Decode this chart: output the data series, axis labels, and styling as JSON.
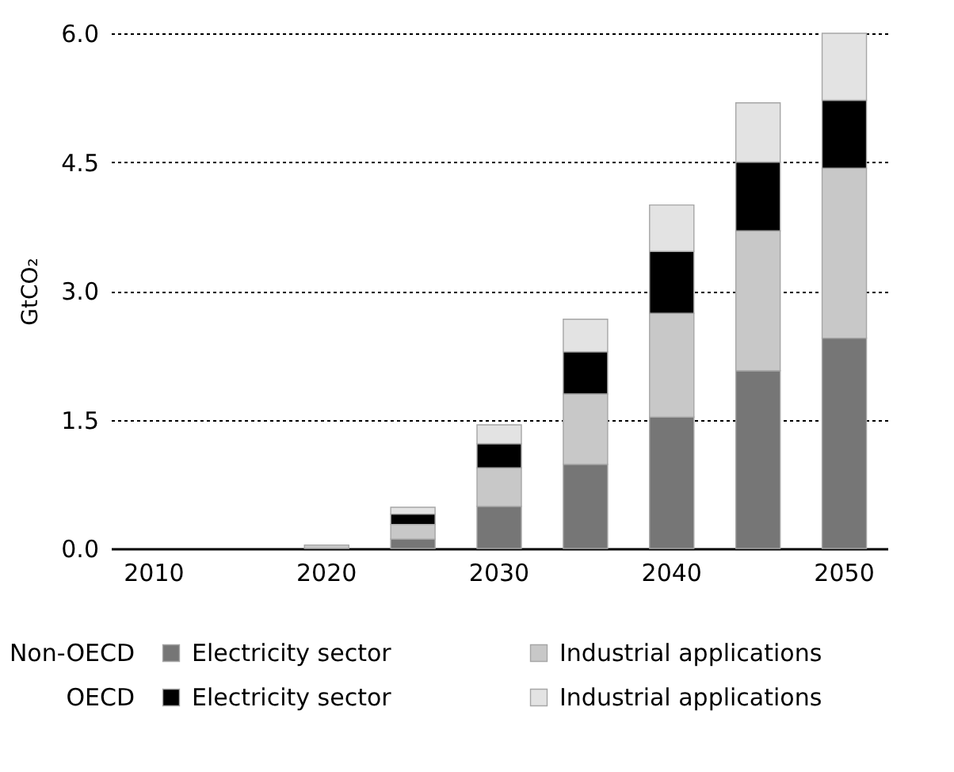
{
  "chart_data": {
    "type": "bar",
    "stacked": true,
    "ylabel": "GtCO₂",
    "categories": [
      "2010",
      null,
      "2020",
      null,
      "2030",
      null,
      "2040",
      null,
      "2050"
    ],
    "series": [
      {
        "name": "Electricity sector",
        "color": "#767676",
        "values": [
          0,
          0,
          0,
          0.11,
          0.49,
          0.98,
          1.53,
          2.07,
          2.45
        ]
      },
      {
        "name": "Industrial applications",
        "color": "#c8c8c8",
        "values": [
          0,
          0,
          0.04,
          0.17,
          0.45,
          0.82,
          1.21,
          1.63,
          1.98
        ]
      },
      {
        "name": "Electricity sector",
        "color": "#000000",
        "values": [
          0,
          0,
          0,
          0.12,
          0.28,
          0.49,
          0.72,
          0.8,
          0.79
        ]
      },
      {
        "name": "Industrial applications",
        "color": "#e3e3e3",
        "values": [
          0,
          0,
          0,
          0.08,
          0.22,
          0.38,
          0.54,
          0.69,
          0.78
        ]
      }
    ],
    "annotations": [
      "Non-OECD",
      "OECD"
    ],
    "ylim": [
      0,
      6.0
    ],
    "yticks": [
      {
        "value": 0,
        "label": "0.0"
      },
      {
        "value": 1.5,
        "label": "1.5"
      },
      {
        "value": 3,
        "label": "3.0"
      },
      {
        "value": 4.5,
        "label": "4.5"
      },
      {
        "value": 6,
        "label": "6.0"
      }
    ],
    "grid": "y",
    "legend": "bottom"
  }
}
